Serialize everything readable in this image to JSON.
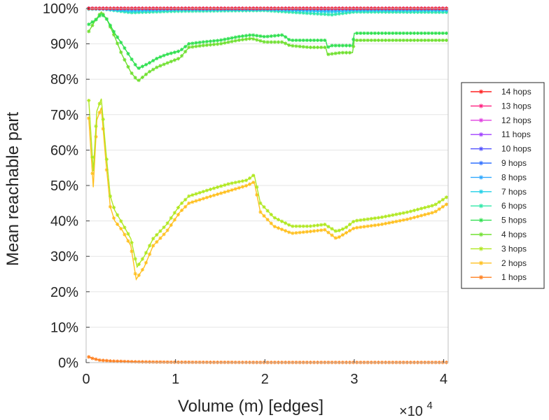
{
  "chart_data": {
    "type": "line",
    "xlabel": "Volume (m) [edges]",
    "ylabel": "Mean reachable part",
    "x_multiplier_label": "×10",
    "x_multiplier_exponent": "4",
    "xlim": [
      0,
      40500
    ],
    "ylim": [
      0,
      100
    ],
    "x_ticks": [
      {
        "value": 0,
        "label": "0"
      },
      {
        "value": 10000,
        "label": "1"
      },
      {
        "value": 20000,
        "label": "2"
      },
      {
        "value": 30000,
        "label": "3"
      },
      {
        "value": 40000,
        "label": "4"
      }
    ],
    "y_ticks": [
      {
        "value": 0,
        "label": "0%"
      },
      {
        "value": 10,
        "label": "10%"
      },
      {
        "value": 20,
        "label": "20%"
      },
      {
        "value": 30,
        "label": "30%"
      },
      {
        "value": 40,
        "label": "40%"
      },
      {
        "value": 50,
        "label": "50%"
      },
      {
        "value": 60,
        "label": "60%"
      },
      {
        "value": 70,
        "label": "70%"
      },
      {
        "value": 80,
        "label": "80%"
      },
      {
        "value": 90,
        "label": "90%"
      },
      {
        "value": 100,
        "label": "100%"
      }
    ],
    "grid": "horizontal",
    "legend_position": "right",
    "series": [
      {
        "name": "14 hops",
        "color": "#ff2020",
        "points": [
          [
            300,
            100
          ],
          [
            40500,
            100
          ]
        ]
      },
      {
        "name": "13 hops",
        "color": "#ff2080",
        "points": [
          [
            300,
            100
          ],
          [
            40500,
            100
          ]
        ]
      },
      {
        "name": "12 hops",
        "color": "#e040e0",
        "points": [
          [
            300,
            100
          ],
          [
            40500,
            100
          ]
        ]
      },
      {
        "name": "11 hops",
        "color": "#a040ff",
        "points": [
          [
            300,
            100
          ],
          [
            40500,
            100
          ]
        ]
      },
      {
        "name": "10 hops",
        "color": "#5050ff",
        "points": [
          [
            300,
            100
          ],
          [
            40500,
            100
          ]
        ]
      },
      {
        "name": "9 hops",
        "color": "#3070ff",
        "points": [
          [
            300,
            100
          ],
          [
            10000,
            99.9
          ],
          [
            20000,
            99.9
          ],
          [
            30000,
            99.9
          ],
          [
            40500,
            99.9
          ]
        ]
      },
      {
        "name": "8 hops",
        "color": "#30a8ff",
        "points": [
          [
            300,
            100
          ],
          [
            5000,
            99.6
          ],
          [
            10000,
            99.8
          ],
          [
            20000,
            99.8
          ],
          [
            27500,
            99.5
          ],
          [
            30000,
            99.7
          ],
          [
            40500,
            99.7
          ]
        ]
      },
      {
        "name": "7 hops",
        "color": "#20d0e8",
        "points": [
          [
            300,
            100
          ],
          [
            2000,
            99.8
          ],
          [
            5000,
            99.2
          ],
          [
            10000,
            99.6
          ],
          [
            20000,
            99.7
          ],
          [
            27500,
            99
          ],
          [
            30000,
            99.4
          ],
          [
            40500,
            99.4
          ]
        ]
      },
      {
        "name": "6 hops",
        "color": "#30e8a8",
        "points": [
          [
            300,
            99.8
          ],
          [
            2000,
            99.8
          ],
          [
            5000,
            98.8
          ],
          [
            10000,
            99.2
          ],
          [
            20000,
            99.4
          ],
          [
            27500,
            98.2
          ],
          [
            30000,
            99
          ],
          [
            40500,
            98.9
          ]
        ]
      },
      {
        "name": "5 hops",
        "color": "#30e050",
        "points": [
          [
            300,
            95.5
          ],
          [
            1200,
            97
          ],
          [
            1700,
            98.5
          ],
          [
            2300,
            97
          ],
          [
            3200,
            93
          ],
          [
            4000,
            90
          ],
          [
            5000,
            86
          ],
          [
            5800,
            83
          ],
          [
            7000,
            84.5
          ],
          [
            8000,
            86
          ],
          [
            9000,
            87
          ],
          [
            10500,
            88
          ],
          [
            11500,
            90
          ],
          [
            13000,
            90.5
          ],
          [
            15000,
            91
          ],
          [
            17000,
            92
          ],
          [
            18500,
            92.5
          ],
          [
            20000,
            92
          ],
          [
            22000,
            92.5
          ],
          [
            22800,
            91
          ],
          [
            25000,
            91
          ],
          [
            26800,
            91
          ],
          [
            27000,
            89
          ],
          [
            27500,
            89.5
          ],
          [
            28500,
            89.5
          ],
          [
            29800,
            89.5
          ],
          [
            30000,
            93
          ],
          [
            35000,
            93
          ],
          [
            40500,
            93
          ]
        ]
      },
      {
        "name": "4 hops",
        "color": "#70e030",
        "points": [
          [
            300,
            93.5
          ],
          [
            1000,
            96.5
          ],
          [
            1700,
            99
          ],
          [
            2300,
            97
          ],
          [
            3200,
            92
          ],
          [
            4000,
            87
          ],
          [
            5000,
            82
          ],
          [
            5800,
            79.5
          ],
          [
            7000,
            82
          ],
          [
            8000,
            83.5
          ],
          [
            9000,
            84.5
          ],
          [
            10500,
            86
          ],
          [
            11500,
            89
          ],
          [
            13000,
            89.5
          ],
          [
            15000,
            90
          ],
          [
            17000,
            91
          ],
          [
            18500,
            91.5
          ],
          [
            20000,
            90.5
          ],
          [
            22000,
            90.5
          ],
          [
            22800,
            89.5
          ],
          [
            25000,
            89
          ],
          [
            26800,
            89
          ],
          [
            27000,
            87
          ],
          [
            28500,
            87.5
          ],
          [
            29800,
            87.5
          ],
          [
            30000,
            91
          ],
          [
            35000,
            91
          ],
          [
            40500,
            91
          ]
        ]
      },
      {
        "name": "3 hops",
        "color": "#b0e820",
        "points": [
          [
            300,
            74
          ],
          [
            800,
            54
          ],
          [
            1200,
            71
          ],
          [
            1700,
            74.5
          ],
          [
            2200,
            60
          ],
          [
            2700,
            47
          ],
          [
            3200,
            43
          ],
          [
            4000,
            39.5
          ],
          [
            5000,
            35
          ],
          [
            5700,
            27
          ],
          [
            6500,
            30
          ],
          [
            7500,
            35
          ],
          [
            9000,
            39
          ],
          [
            10500,
            44.5
          ],
          [
            11500,
            47
          ],
          [
            14000,
            49
          ],
          [
            16000,
            50.5
          ],
          [
            18000,
            51.5
          ],
          [
            18800,
            53
          ],
          [
            19500,
            45
          ],
          [
            21000,
            41
          ],
          [
            23000,
            38.5
          ],
          [
            25000,
            38.5
          ],
          [
            26700,
            39
          ],
          [
            28000,
            37
          ],
          [
            29000,
            38
          ],
          [
            30000,
            40
          ],
          [
            33000,
            41
          ],
          [
            36000,
            42.5
          ],
          [
            39000,
            44.5
          ],
          [
            40500,
            47
          ]
        ]
      },
      {
        "name": "2 hops",
        "color": "#ffc020",
        "points": [
          [
            300,
            69
          ],
          [
            800,
            49.5
          ],
          [
            1200,
            68.5
          ],
          [
            1700,
            72
          ],
          [
            2200,
            57
          ],
          [
            2700,
            44
          ],
          [
            3200,
            40
          ],
          [
            4000,
            37.5
          ],
          [
            5000,
            33
          ],
          [
            5600,
            23.5
          ],
          [
            6500,
            27
          ],
          [
            7500,
            33
          ],
          [
            9000,
            37
          ],
          [
            10500,
            42.5
          ],
          [
            11500,
            45
          ],
          [
            14000,
            47
          ],
          [
            16000,
            48.5
          ],
          [
            18000,
            50
          ],
          [
            18800,
            51
          ],
          [
            19500,
            42.5
          ],
          [
            21000,
            38.5
          ],
          [
            23000,
            36.5
          ],
          [
            25000,
            37
          ],
          [
            26700,
            37.5
          ],
          [
            28000,
            35
          ],
          [
            29000,
            36.5
          ],
          [
            30000,
            38
          ],
          [
            33000,
            39
          ],
          [
            36000,
            40.5
          ],
          [
            39000,
            42.5
          ],
          [
            40500,
            45
          ]
        ]
      },
      {
        "name": "1 hops",
        "color": "#ff8020",
        "points": [
          [
            300,
            1.6
          ],
          [
            700,
            1.2
          ],
          [
            1500,
            0.7
          ],
          [
            3000,
            0.4
          ],
          [
            6000,
            0.2
          ],
          [
            10000,
            0.1
          ],
          [
            20000,
            0.05
          ],
          [
            40500,
            0.05
          ]
        ]
      }
    ]
  }
}
